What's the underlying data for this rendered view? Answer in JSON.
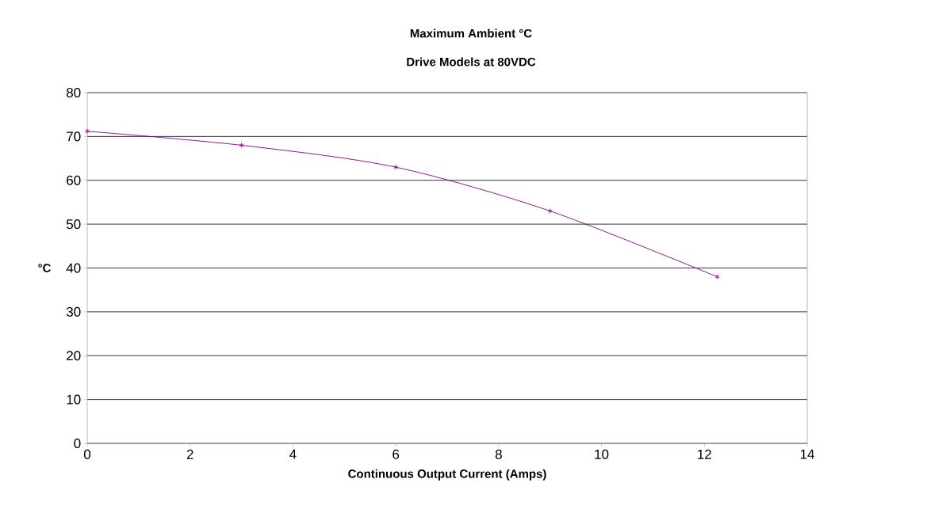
{
  "chart_data": {
    "type": "line",
    "title": "Maximum Ambient °C",
    "subtitle": "Drive Models at 80VDC",
    "xlabel": "Continuous Output Current (Amps)",
    "ylabel": "°C",
    "x": [
      0,
      3,
      6,
      9,
      12.25
    ],
    "values": [
      71.2,
      68,
      63,
      53,
      38
    ],
    "color": "#800080",
    "marker": "cross",
    "line_style": "solid",
    "xlim": [
      0,
      14
    ],
    "ylim": [
      0,
      80
    ],
    "xticks": [
      0,
      2,
      4,
      6,
      8,
      10,
      12,
      14
    ],
    "yticks": [
      0,
      10,
      20,
      30,
      40,
      50,
      60,
      70,
      80
    ],
    "grid": "y"
  }
}
